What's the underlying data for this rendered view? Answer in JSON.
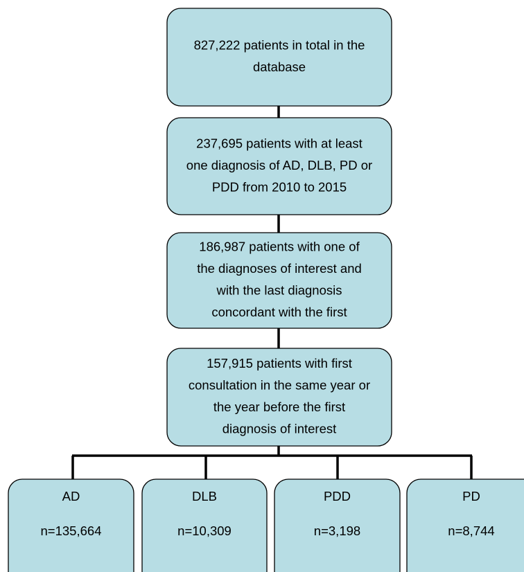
{
  "nodes": [
    {
      "lines": [
        "827,222 patients in total in the",
        "database"
      ]
    },
    {
      "lines": [
        "237,695 patients with at least",
        "one diagnosis of AD, DLB, PD or",
        "PDD from 2010 to 2015"
      ]
    },
    {
      "lines": [
        "186,987 patients with one of",
        "the diagnoses of interest and",
        "with the last diagnosis",
        "concordant with the first"
      ]
    },
    {
      "lines": [
        "157,915 patients with first",
        "consultation in the same year or",
        "the year before the first",
        "diagnosis of interest"
      ]
    }
  ],
  "groups": [
    {
      "label": "AD",
      "count": "n=135,664"
    },
    {
      "label": "DLB",
      "count": "n=10,309"
    },
    {
      "label": "PDD",
      "count": "n=3,198"
    },
    {
      "label": "PD",
      "count": "n=8,744"
    }
  ]
}
